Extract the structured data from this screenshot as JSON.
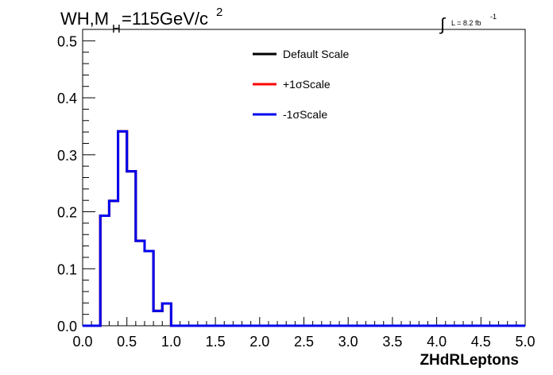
{
  "title": {
    "main": "WH,M",
    "sub": "H",
    "rest": "=115GeV/c",
    "sup": "2"
  },
  "lumi": {
    "symbol": "∫",
    "text": "L = 8.2 fb",
    "sup": "-1"
  },
  "chart_data": {
    "type": "step",
    "xlabel": "ZHdRLeptons",
    "ylabel": "",
    "xlim": [
      0.0,
      5.0
    ],
    "ylim": [
      0.0,
      0.52
    ],
    "xticks": [
      "0.0",
      "0.5",
      "1.0",
      "1.5",
      "2.0",
      "2.5",
      "3.0",
      "3.5",
      "4.0",
      "4.5",
      "5.0"
    ],
    "yticks": [
      "0.0",
      "0.1",
      "0.2",
      "0.3",
      "0.4",
      "0.5"
    ],
    "bin_width": 0.1,
    "bin_edges_start": 0.0,
    "series": [
      {
        "name": "Default Scale",
        "color": "#000000",
        "values": [
          0,
          0,
          0.193,
          0.219,
          0.341,
          0.271,
          0.149,
          0.131,
          0.026,
          0.039,
          0,
          0,
          0,
          0,
          0,
          0,
          0,
          0,
          0,
          0,
          0,
          0,
          0,
          0,
          0,
          0,
          0,
          0,
          0,
          0,
          0,
          0,
          0,
          0,
          0,
          0,
          0,
          0,
          0,
          0,
          0,
          0,
          0,
          0,
          0,
          0,
          0,
          0,
          0,
          0
        ]
      },
      {
        "name": "+1σScale",
        "color": "#ff0000",
        "values": [
          0,
          0,
          0.193,
          0.219,
          0.341,
          0.271,
          0.149,
          0.131,
          0.026,
          0.039,
          0,
          0,
          0,
          0,
          0,
          0,
          0,
          0,
          0,
          0,
          0,
          0,
          0,
          0,
          0,
          0,
          0,
          0,
          0,
          0,
          0,
          0,
          0,
          0,
          0,
          0,
          0,
          0,
          0,
          0,
          0,
          0,
          0,
          0,
          0,
          0,
          0,
          0,
          0,
          0
        ]
      },
      {
        "name": "-1σScale",
        "color": "#0000ee",
        "values": [
          0,
          0,
          0.193,
          0.219,
          0.341,
          0.271,
          0.149,
          0.131,
          0.026,
          0.039,
          0,
          0,
          0,
          0,
          0,
          0,
          0,
          0,
          0,
          0,
          0,
          0,
          0,
          0,
          0,
          0,
          0,
          0,
          0,
          0,
          0,
          0,
          0,
          0,
          0,
          0,
          0,
          0,
          0,
          0,
          0,
          0,
          0,
          0,
          0,
          0,
          0,
          0,
          0,
          0
        ]
      }
    ],
    "legend_position": "top-center",
    "grid": false
  }
}
